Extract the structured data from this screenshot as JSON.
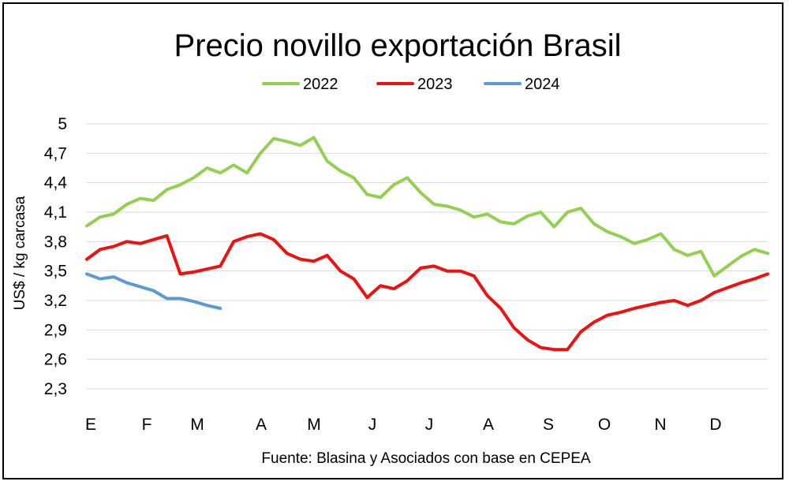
{
  "chart_data": {
    "type": "line",
    "title": "Precio novillo exportación Brasil",
    "ylabel": "US$ / kg carcasa",
    "source": "Fuente: Blasina y Asociados con base en CEPEA",
    "ylim": [
      2.3,
      5.0
    ],
    "y_ticks": [
      "5",
      "4,7",
      "4,4",
      "4,1",
      "3,8",
      "3,5",
      "3,2",
      "2,9",
      "2,6",
      "2,3"
    ],
    "y_tick_values": [
      5.0,
      4.7,
      4.4,
      4.1,
      3.8,
      3.5,
      3.2,
      2.9,
      2.6,
      2.3
    ],
    "categories": [
      "E",
      "F",
      "M",
      "A",
      "M",
      "J",
      "J",
      "A",
      "S",
      "O",
      "N",
      "D"
    ],
    "x_unit": "week of year",
    "xlim": [
      1,
      52
    ],
    "legend": {
      "position": "top"
    },
    "grid": true,
    "series": [
      {
        "name": "2022",
        "color": "#92d050",
        "x": [
          1,
          2,
          3,
          4,
          5,
          6,
          7,
          8,
          9,
          10,
          11,
          12,
          13,
          14,
          15,
          16,
          17,
          18,
          19,
          20,
          21,
          22,
          23,
          24,
          25,
          26,
          27,
          28,
          29,
          30,
          31,
          32,
          33,
          34,
          35,
          36,
          37,
          38,
          39,
          40,
          41,
          42,
          43,
          44,
          45,
          46,
          47,
          48,
          49,
          50,
          51,
          52
        ],
        "values": [
          3.96,
          4.05,
          4.08,
          4.18,
          4.24,
          4.22,
          4.33,
          4.38,
          4.45,
          4.55,
          4.5,
          4.58,
          4.5,
          4.7,
          4.85,
          4.82,
          4.78,
          4.86,
          4.62,
          4.52,
          4.45,
          4.28,
          4.25,
          4.38,
          4.45,
          4.3,
          4.18,
          4.16,
          4.12,
          4.05,
          4.08,
          4.0,
          3.98,
          4.06,
          4.1,
          3.95,
          4.1,
          4.14,
          3.98,
          3.9,
          3.85,
          3.78,
          3.82,
          3.88,
          3.72,
          3.66,
          3.7,
          3.45,
          3.55,
          3.65,
          3.72,
          3.68
        ]
      },
      {
        "name": "2023",
        "color": "#ee1111",
        "x": [
          1,
          2,
          3,
          4,
          5,
          6,
          7,
          8,
          9,
          10,
          11,
          12,
          13,
          14,
          15,
          16,
          17,
          18,
          19,
          20,
          21,
          22,
          23,
          24,
          25,
          26,
          27,
          28,
          29,
          30,
          31,
          32,
          33,
          34,
          35,
          36,
          37,
          38,
          39,
          40,
          41,
          42,
          43,
          44,
          45,
          46,
          47,
          48,
          49,
          50,
          51,
          52
        ],
        "values": [
          3.62,
          3.72,
          3.75,
          3.8,
          3.78,
          3.82,
          3.86,
          3.47,
          3.49,
          3.52,
          3.55,
          3.8,
          3.85,
          3.88,
          3.82,
          3.68,
          3.62,
          3.6,
          3.66,
          3.5,
          3.42,
          3.23,
          3.35,
          3.32,
          3.4,
          3.53,
          3.55,
          3.5,
          3.5,
          3.45,
          3.25,
          3.12,
          2.92,
          2.8,
          2.72,
          2.7,
          2.7,
          2.88,
          2.98,
          3.05,
          3.08,
          3.12,
          3.15,
          3.18,
          3.2,
          3.15,
          3.2,
          3.28,
          3.33,
          3.38,
          3.42,
          3.47
        ]
      },
      {
        "name": "2024",
        "color": "#5b9bd5",
        "x": [
          1,
          2,
          3,
          4,
          5,
          6,
          7,
          8,
          9,
          10,
          11
        ],
        "values": [
          3.47,
          3.42,
          3.44,
          3.38,
          3.34,
          3.3,
          3.22,
          3.22,
          3.19,
          3.15,
          3.12
        ]
      }
    ]
  }
}
